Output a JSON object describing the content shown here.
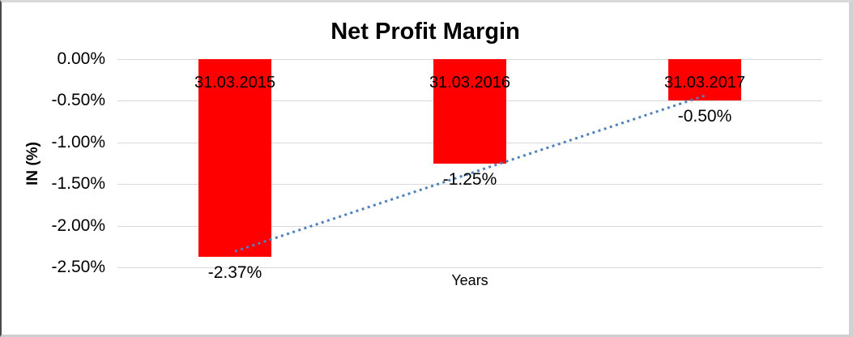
{
  "chart_data": {
    "type": "bar",
    "title": "Net Profit Margin",
    "categories": [
      "31.03.2015",
      "31.03.2016",
      "31.03.2017"
    ],
    "values": [
      -2.37,
      -1.25,
      -0.5
    ],
    "value_labels": [
      "-2.37%",
      "-1.25%",
      "-0.50%"
    ],
    "xlabel": "Years",
    "ylabel": "IN (%)",
    "ylim": [
      -2.5,
      0
    ],
    "yticks": [
      0,
      -0.5,
      -1.0,
      -1.5,
      -2.0,
      -2.5
    ],
    "ytick_labels": [
      "0.00%",
      "-0.50%",
      "-1.00%",
      "-1.50%",
      "-2.00%",
      "-2.50%"
    ],
    "grid": true,
    "legend_position": "none",
    "bar_color": "#FF0000",
    "gridline_color": "#D9D9D9",
    "text_color": "#000000",
    "trendline": {
      "type": "linear",
      "style": "dotted",
      "color": "#4E81BD"
    }
  }
}
